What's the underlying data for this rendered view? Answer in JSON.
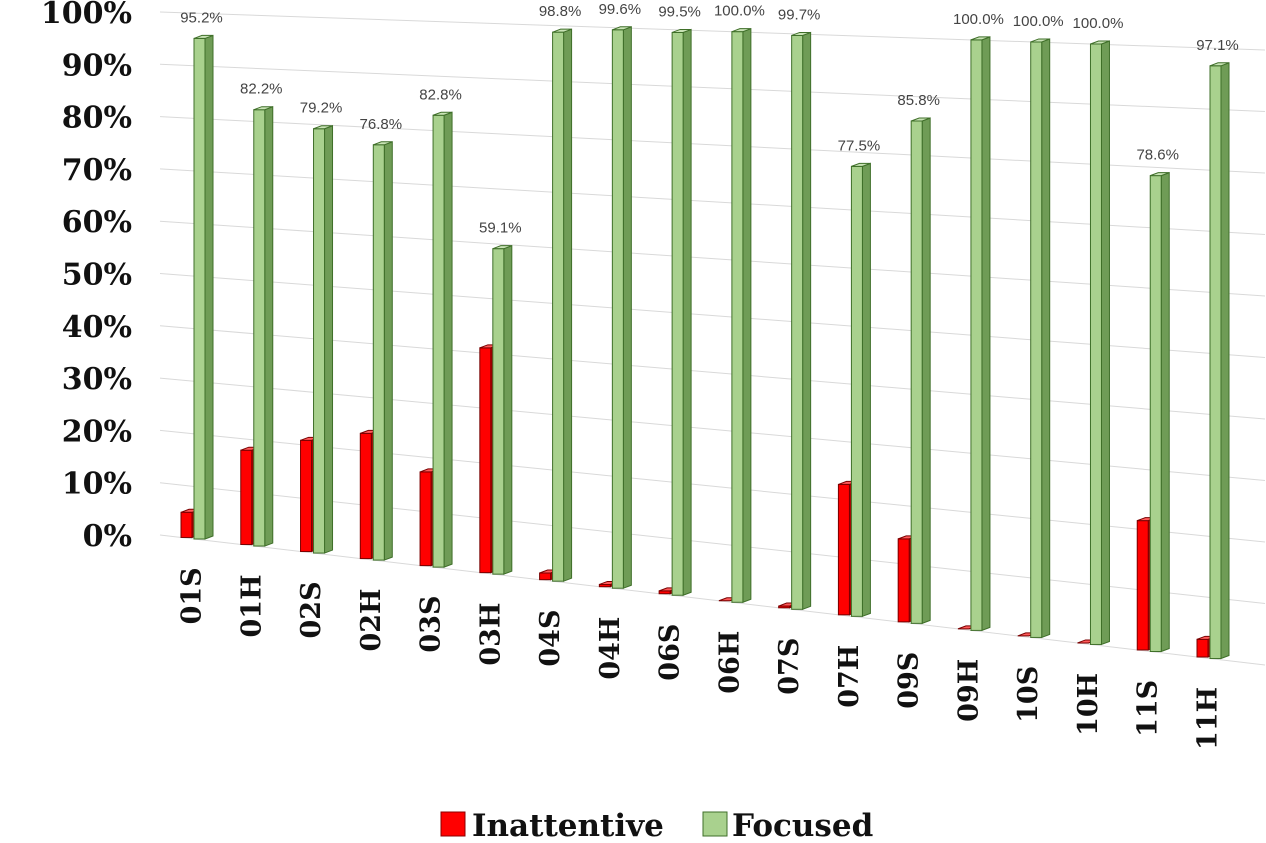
{
  "chart_data": {
    "type": "bar",
    "categories": [
      "01S",
      "01H",
      "02S",
      "02H",
      "03S",
      "03H",
      "04S",
      "04H",
      "06S",
      "06H",
      "07S",
      "07H",
      "09S",
      "09H",
      "10S",
      "10H",
      "11S",
      "11H"
    ],
    "series": [
      {
        "name": "Inattentive",
        "values": [
          4.8,
          17.8,
          20.8,
          23.2,
          17.2,
          40.9,
          1.2,
          0.4,
          0.5,
          0.0,
          0.3,
          22.5,
          14.2,
          0.0,
          0.0,
          0.0,
          21.4,
          2.9
        ],
        "color": "#ff0000"
      },
      {
        "name": "Focused",
        "values": [
          95.2,
          82.2,
          79.2,
          76.8,
          82.8,
          59.1,
          98.8,
          99.6,
          99.5,
          100.0,
          99.7,
          77.5,
          85.8,
          100.0,
          100.0,
          100.0,
          78.6,
          97.1
        ],
        "color": "#a9d18e"
      }
    ],
    "data_labels": [
      "95.2%",
      "82.2%",
      "79.2%",
      "76.8%",
      "82.8%",
      "59.1%",
      "98.8%",
      "99.6%",
      "99.5%",
      "100.0%",
      "99.7%",
      "77.5%",
      "85.8%",
      "100.0%",
      "100.0%",
      "100.0%",
      "78.6%",
      "97.1%"
    ],
    "y_ticks": [
      "0%",
      "10%",
      "20%",
      "30%",
      "40%",
      "50%",
      "60%",
      "70%",
      "80%",
      "90%",
      "100%"
    ],
    "ylim": [
      0,
      100
    ],
    "grid": true,
    "legend_position": "bottom",
    "title": "",
    "xlabel": "",
    "ylabel": ""
  }
}
